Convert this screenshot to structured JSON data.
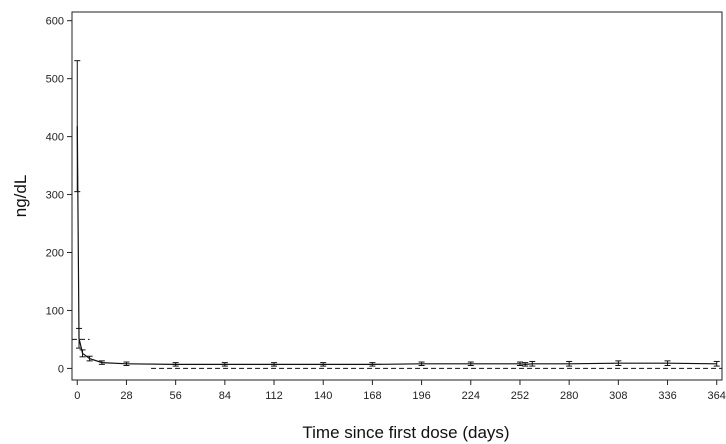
{
  "chart_data": {
    "type": "line",
    "title": "",
    "xlabel": "Time since first dose (days)",
    "ylabel": "ng/dL",
    "xticks": [
      0,
      28,
      56,
      84,
      112,
      140,
      168,
      196,
      224,
      252,
      280,
      308,
      336,
      364
    ],
    "yticks": [
      0,
      100,
      200,
      300,
      400,
      500,
      600
    ],
    "xlim": [
      -3,
      367
    ],
    "ylim": [
      -20,
      615
    ],
    "grid": false,
    "series": [
      {
        "points": [
          {
            "x": 0,
            "y": 418,
            "err_low": 113,
            "err_high": 113
          },
          {
            "x": 1,
            "y": 52,
            "err_low": 17,
            "err_high": 17
          },
          {
            "x": 3,
            "y": 26,
            "err_low": 6,
            "err_high": 6
          },
          {
            "x": 7,
            "y": 17,
            "err_low": 4,
            "err_high": 4
          },
          {
            "x": 14,
            "y": 10,
            "err_low": 3,
            "err_high": 3
          },
          {
            "x": 28,
            "y": 8,
            "err_low": 3,
            "err_high": 3
          },
          {
            "x": 56,
            "y": 7,
            "err_low": 3,
            "err_high": 3
          },
          {
            "x": 84,
            "y": 7,
            "err_low": 3,
            "err_high": 3
          },
          {
            "x": 112,
            "y": 7,
            "err_low": 3,
            "err_high": 3
          },
          {
            "x": 140,
            "y": 7,
            "err_low": 3,
            "err_high": 3
          },
          {
            "x": 168,
            "y": 7,
            "err_low": 3,
            "err_high": 3
          },
          {
            "x": 196,
            "y": 8,
            "err_low": 3,
            "err_high": 3
          },
          {
            "x": 224,
            "y": 8,
            "err_low": 3,
            "err_high": 3
          },
          {
            "x": 252,
            "y": 8,
            "err_low": 3,
            "err_high": 3
          },
          {
            "x": 255,
            "y": 7,
            "err_low": 3,
            "err_high": 3
          },
          {
            "x": 259,
            "y": 8,
            "err_low": 4,
            "err_high": 4
          },
          {
            "x": 280,
            "y": 8,
            "err_low": 4,
            "err_high": 4
          },
          {
            "x": 308,
            "y": 9,
            "err_low": 4,
            "err_high": 4
          },
          {
            "x": 336,
            "y": 9,
            "err_low": 4,
            "err_high": 4
          },
          {
            "x": 364,
            "y": 8,
            "err_low": 4,
            "err_high": 4
          }
        ]
      }
    ],
    "reference_lines": [
      {
        "y": 50,
        "x_start": -3,
        "x_end": 7,
        "style": "dashed"
      },
      {
        "y": 0,
        "x_start": 42,
        "x_end": 367,
        "style": "dashed"
      }
    ],
    "colors": {
      "line": "#111111",
      "axis": "#222222",
      "background": "#ffffff"
    }
  }
}
